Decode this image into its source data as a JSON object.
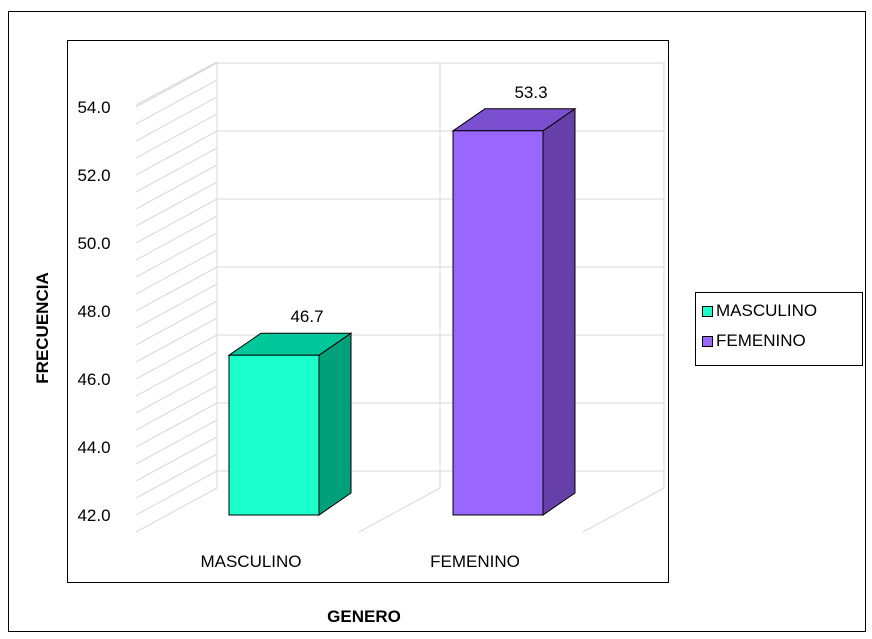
{
  "chart_data": {
    "type": "bar",
    "categories": [
      "MASCULINO",
      "FEMENINO"
    ],
    "values": [
      46.7,
      53.3
    ],
    "data_labels": [
      "46.7",
      "53.3"
    ],
    "xlabel": "GENERO",
    "ylabel": "FRECUENCIA",
    "ylim": [
      42.0,
      54.0
    ],
    "yticks": [
      "42.0",
      "44.0",
      "46.0",
      "48.0",
      "50.0",
      "52.0",
      "54.0"
    ],
    "grid": true,
    "legend": {
      "placement": "right",
      "entries": [
        "MASCULINO",
        "FEMENINO"
      ]
    },
    "colors": {
      "MASCULINO": {
        "front": "#1AFFCC",
        "side": "#00A07A",
        "top": "#00C79A"
      },
      "FEMENINO": {
        "front": "#9966FF",
        "side": "#6640A8",
        "top": "#7A4FD0"
      }
    }
  }
}
